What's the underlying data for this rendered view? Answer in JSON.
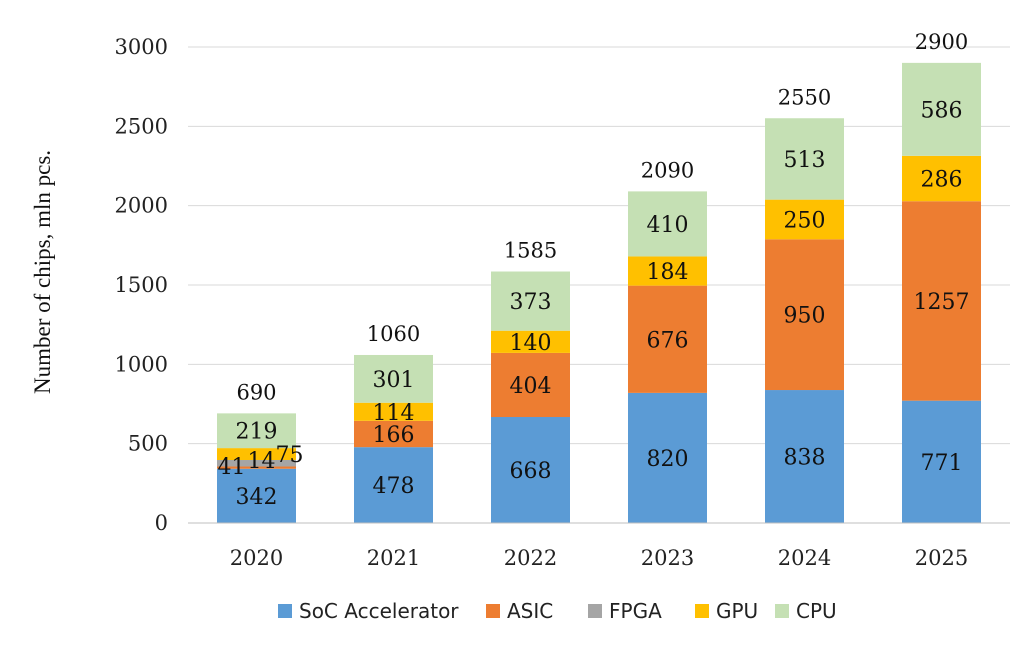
{
  "chart_data": {
    "type": "bar",
    "stacked": true,
    "categories": [
      "2020",
      "2021",
      "2022",
      "2023",
      "2024",
      "2025"
    ],
    "series": [
      {
        "name": "SoC Accelerator",
        "color": "#5b9bd5",
        "values": [
          342,
          478,
          668,
          820,
          838,
          771
        ]
      },
      {
        "name": "ASIC",
        "color": "#ed7d31",
        "values": [
          14,
          166,
          404,
          676,
          950,
          1257
        ]
      },
      {
        "name": "FPGA",
        "color": "#a5a5a5",
        "values": [
          41,
          0,
          0,
          0,
          0,
          0
        ]
      },
      {
        "name": "GPU",
        "color": "#ffc000",
        "values": [
          75,
          114,
          140,
          184,
          250,
          286
        ]
      },
      {
        "name": "CPU",
        "color": "#c5e0b4",
        "values": [
          219,
          301,
          373,
          410,
          513,
          586
        ]
      }
    ],
    "totals": [
      690,
      1060,
      1585,
      2090,
      2550,
      2900
    ],
    "ylabel": "Number of chips, mln pcs.",
    "xlabel": "",
    "ylim": [
      0,
      3000
    ],
    "yticks": [
      0,
      500,
      1000,
      1500,
      2000,
      2500,
      3000
    ],
    "grid": true,
    "legend": "bottom"
  }
}
